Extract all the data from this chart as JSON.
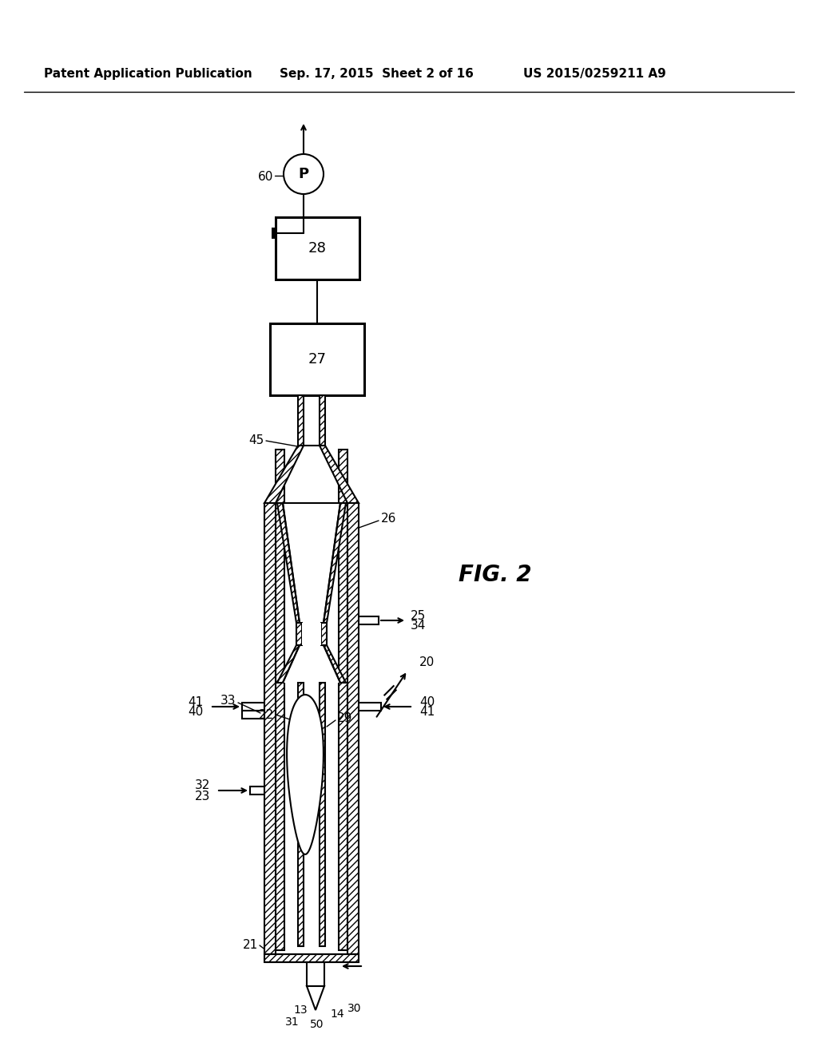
{
  "header_left": "Patent Application Publication",
  "header_center": "Sep. 17, 2015  Sheet 2 of 16",
  "header_right": "US 2015/0259211 A9",
  "fig_label": "FIG. 2",
  "background_color": "#ffffff"
}
